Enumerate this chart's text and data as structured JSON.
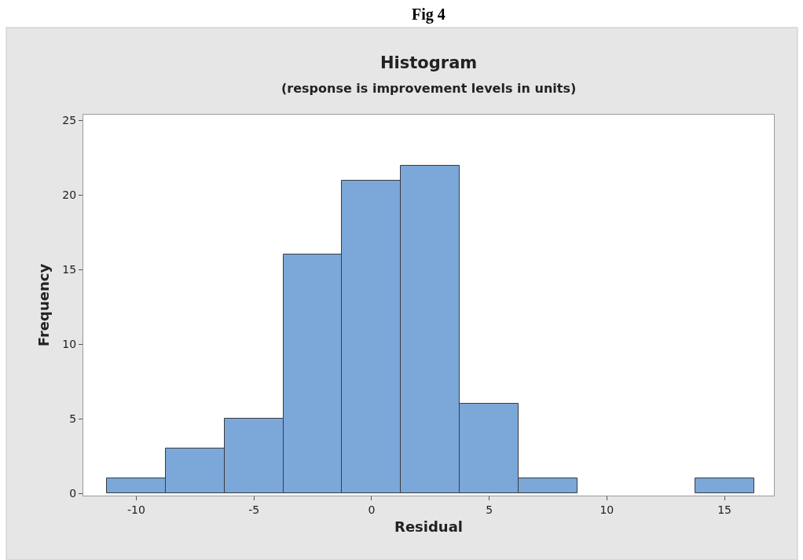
{
  "chart_data": {
    "type": "histogram",
    "title": "Histogram",
    "subtitle": "(response is improvement levels in units)",
    "xlabel": "Residual",
    "ylabel": "Frequency",
    "annotations": [
      "Fig 4"
    ],
    "bins": [
      -11.25,
      -8.75,
      -6.25,
      -3.75,
      -1.25,
      1.25,
      3.75,
      6.25,
      8.75,
      11.25,
      13.75,
      16.25
    ],
    "values": [
      1,
      3,
      5,
      16,
      21,
      22,
      6,
      1,
      0,
      0,
      1
    ],
    "color": "#7ba7d9",
    "xlim": [
      -12.25,
      17.1
    ],
    "xticks": [
      -10,
      -5,
      0,
      5,
      10,
      15
    ],
    "ylim": [
      -0.15,
      25.4
    ],
    "yticks": [
      0,
      5,
      10,
      15,
      20,
      25
    ],
    "legend": false
  }
}
